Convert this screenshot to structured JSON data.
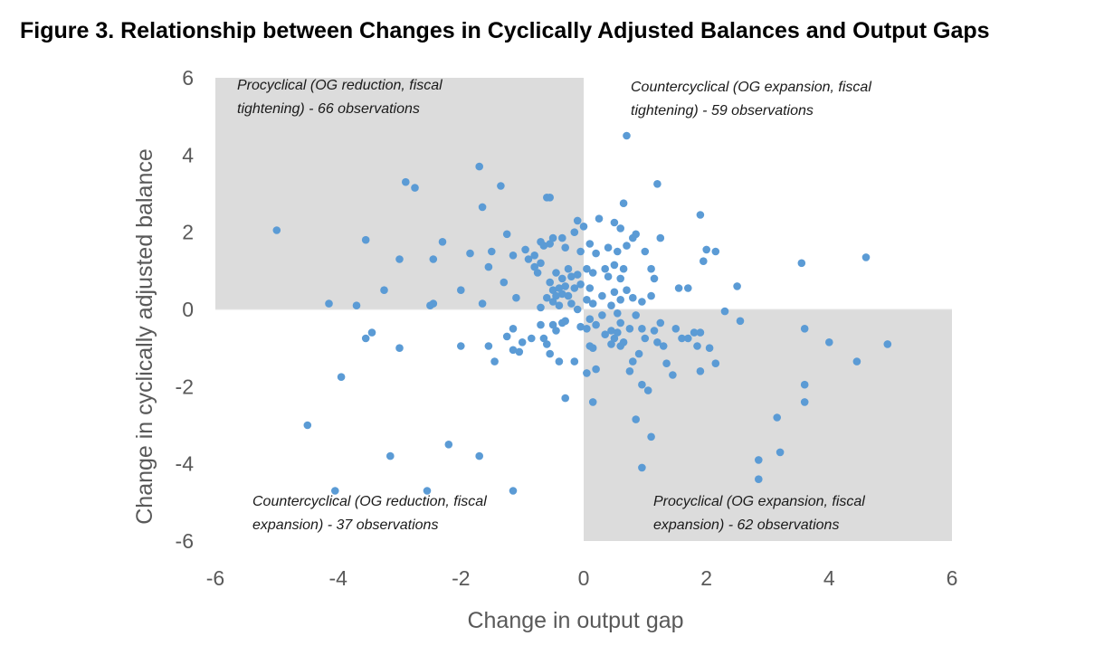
{
  "title": "Figure 3. Relationship between Changes in Cyclically Adjusted Balances and Output Gaps",
  "colors": {
    "point": "#5B9BD5",
    "quadrant": "#DCDCDC",
    "axis": "#595959"
  },
  "chart_data": {
    "type": "scatter",
    "xlabel": "Change in output gap",
    "ylabel": "Change in cyclically adjusted balance",
    "xlim": [
      -6,
      6
    ],
    "ylim": [
      -6,
      6
    ],
    "xticks": [
      "-6",
      "-4",
      "-2",
      "0",
      "2",
      "4",
      "6"
    ],
    "yticks": [
      "6",
      "4",
      "2",
      "0",
      "-2",
      "-4",
      "-6"
    ],
    "grid": false,
    "shaded_quadrants": [
      "top-left",
      "bottom-right"
    ],
    "quadrant_labels": {
      "top_left": [
        "Procyclical (OG reduction, fiscal",
        "tightening) - 66 observations"
      ],
      "top_right": [
        "Countercyclical (OG expansion,  fiscal",
        "tightening) - 59 observations"
      ],
      "bottom_left": [
        "Countercyclical (OG reduction, fiscal",
        "expansion)  - 37 observations"
      ],
      "bottom_right": [
        "Procyclical (OG expansion,  fiscal",
        "expansion) - 62 observations"
      ]
    },
    "points": [
      [
        -5.0,
        2.05
      ],
      [
        -4.15,
        0.15
      ],
      [
        -3.95,
        -1.75
      ],
      [
        -4.5,
        -3.0
      ],
      [
        -4.05,
        -4.7
      ],
      [
        -3.7,
        0.1
      ],
      [
        -3.55,
        1.8
      ],
      [
        -3.55,
        -0.75
      ],
      [
        -3.45,
        -0.6
      ],
      [
        -3.25,
        0.5
      ],
      [
        -3.15,
        -3.8
      ],
      [
        -3.0,
        1.3
      ],
      [
        -3.0,
        -1.0
      ],
      [
        -2.9,
        3.3
      ],
      [
        -2.75,
        3.15
      ],
      [
        -2.55,
        -4.7
      ],
      [
        -2.5,
        0.1
      ],
      [
        -2.45,
        0.15
      ],
      [
        -2.45,
        1.3
      ],
      [
        -2.3,
        1.75
      ],
      [
        -2.2,
        -3.5
      ],
      [
        -2.0,
        0.5
      ],
      [
        -2.0,
        -0.95
      ],
      [
        -1.85,
        1.45
      ],
      [
        -1.7,
        3.7
      ],
      [
        -1.7,
        -3.8
      ],
      [
        -1.65,
        0.15
      ],
      [
        -1.65,
        2.65
      ],
      [
        -1.55,
        1.1
      ],
      [
        -1.55,
        -0.95
      ],
      [
        -1.5,
        1.5
      ],
      [
        -1.45,
        -1.35
      ],
      [
        -1.35,
        3.2
      ],
      [
        -1.3,
        0.7
      ],
      [
        -1.25,
        -0.7
      ],
      [
        -1.25,
        1.95
      ],
      [
        -1.15,
        -0.5
      ],
      [
        -1.15,
        -1.05
      ],
      [
        -1.15,
        1.4
      ],
      [
        -1.15,
        -4.7
      ],
      [
        -1.1,
        0.3
      ],
      [
        -1.05,
        -1.1
      ],
      [
        -1.0,
        -0.85
      ],
      [
        -0.95,
        1.55
      ],
      [
        -0.9,
        1.3
      ],
      [
        -0.85,
        -0.75
      ],
      [
        -0.8,
        1.1
      ],
      [
        -0.8,
        1.4
      ],
      [
        -0.75,
        0.95
      ],
      [
        -0.7,
        1.75
      ],
      [
        -0.7,
        1.2
      ],
      [
        -0.7,
        0.05
      ],
      [
        -0.7,
        -0.4
      ],
      [
        -0.65,
        1.65
      ],
      [
        -0.65,
        -0.75
      ],
      [
        -0.6,
        2.9
      ],
      [
        -0.6,
        0.3
      ],
      [
        -0.6,
        -0.9
      ],
      [
        -0.55,
        2.9
      ],
      [
        -0.55,
        1.7
      ],
      [
        -0.55,
        0.7
      ],
      [
        -0.55,
        -1.15
      ],
      [
        -0.5,
        1.85
      ],
      [
        -0.5,
        0.5
      ],
      [
        -0.5,
        0.2
      ],
      [
        -0.5,
        -0.4
      ],
      [
        -0.45,
        0.95
      ],
      [
        -0.45,
        0.35
      ],
      [
        -0.45,
        -0.55
      ],
      [
        -0.4,
        0.55
      ],
      [
        -0.4,
        0.1
      ],
      [
        -0.4,
        -1.35
      ],
      [
        -0.35,
        1.85
      ],
      [
        -0.35,
        0.8
      ],
      [
        -0.35,
        0.4
      ],
      [
        -0.35,
        -0.35
      ],
      [
        -0.3,
        1.6
      ],
      [
        -0.3,
        0.6
      ],
      [
        -0.3,
        -0.3
      ],
      [
        -0.3,
        -2.3
      ],
      [
        -0.25,
        1.05
      ],
      [
        -0.25,
        0.35
      ],
      [
        -0.2,
        0.85
      ],
      [
        -0.2,
        0.15
      ],
      [
        -0.15,
        2.0
      ],
      [
        -0.15,
        0.55
      ],
      [
        -0.15,
        -1.35
      ],
      [
        -0.1,
        2.3
      ],
      [
        -0.1,
        0.9
      ],
      [
        -0.1,
        0.0
      ],
      [
        -0.05,
        1.5
      ],
      [
        -0.05,
        0.65
      ],
      [
        -0.05,
        -0.45
      ],
      [
        0.0,
        2.15
      ],
      [
        0.05,
        1.05
      ],
      [
        0.05,
        0.25
      ],
      [
        0.05,
        -0.5
      ],
      [
        0.05,
        -1.65
      ],
      [
        0.1,
        1.7
      ],
      [
        0.1,
        0.55
      ],
      [
        0.1,
        -0.25
      ],
      [
        0.1,
        -0.95
      ],
      [
        0.15,
        0.95
      ],
      [
        0.15,
        0.15
      ],
      [
        0.15,
        -1.0
      ],
      [
        0.15,
        -2.4
      ],
      [
        0.2,
        1.45
      ],
      [
        0.2,
        -0.4
      ],
      [
        0.2,
        -1.55
      ],
      [
        0.25,
        2.35
      ],
      [
        0.3,
        0.35
      ],
      [
        0.3,
        -0.15
      ],
      [
        0.35,
        1.05
      ],
      [
        0.35,
        -0.65
      ],
      [
        0.4,
        1.6
      ],
      [
        0.4,
        0.85
      ],
      [
        0.45,
        0.1
      ],
      [
        0.45,
        -0.55
      ],
      [
        0.45,
        -0.9
      ],
      [
        0.5,
        2.25
      ],
      [
        0.5,
        1.15
      ],
      [
        0.5,
        0.45
      ],
      [
        0.5,
        -0.75
      ],
      [
        0.55,
        1.5
      ],
      [
        0.55,
        -0.1
      ],
      [
        0.55,
        -0.6
      ],
      [
        0.6,
        2.1
      ],
      [
        0.6,
        0.8
      ],
      [
        0.6,
        0.25
      ],
      [
        0.6,
        -0.35
      ],
      [
        0.6,
        -0.95
      ],
      [
        0.65,
        2.75
      ],
      [
        0.65,
        1.05
      ],
      [
        0.65,
        -0.85
      ],
      [
        0.7,
        4.5
      ],
      [
        0.7,
        1.65
      ],
      [
        0.7,
        0.5
      ],
      [
        0.75,
        -0.5
      ],
      [
        0.75,
        -1.6
      ],
      [
        0.8,
        1.85
      ],
      [
        0.8,
        0.3
      ],
      [
        0.8,
        -1.35
      ],
      [
        0.85,
        1.95
      ],
      [
        0.85,
        -0.15
      ],
      [
        0.85,
        -2.85
      ],
      [
        0.9,
        -1.15
      ],
      [
        0.95,
        0.2
      ],
      [
        0.95,
        -0.5
      ],
      [
        0.95,
        -1.95
      ],
      [
        0.95,
        -4.1
      ],
      [
        1.0,
        1.5
      ],
      [
        1.0,
        -0.75
      ],
      [
        1.05,
        -2.1
      ],
      [
        1.1,
        1.05
      ],
      [
        1.1,
        0.35
      ],
      [
        1.1,
        -3.3
      ],
      [
        1.15,
        0.8
      ],
      [
        1.15,
        -0.55
      ],
      [
        1.2,
        3.25
      ],
      [
        1.2,
        -0.85
      ],
      [
        1.25,
        1.85
      ],
      [
        1.25,
        -0.35
      ],
      [
        1.3,
        -0.95
      ],
      [
        1.35,
        -1.4
      ],
      [
        1.45,
        -1.7
      ],
      [
        1.5,
        -0.5
      ],
      [
        1.55,
        0.55
      ],
      [
        1.6,
        -0.75
      ],
      [
        1.7,
        0.55
      ],
      [
        1.7,
        -0.75
      ],
      [
        1.8,
        -0.6
      ],
      [
        1.85,
        -0.95
      ],
      [
        1.9,
        2.45
      ],
      [
        1.9,
        -0.6
      ],
      [
        1.9,
        -1.6
      ],
      [
        1.95,
        1.25
      ],
      [
        2.0,
        1.55
      ],
      [
        2.05,
        -1.0
      ],
      [
        2.15,
        1.5
      ],
      [
        2.15,
        -1.4
      ],
      [
        2.3,
        -0.05
      ],
      [
        2.5,
        0.6
      ],
      [
        2.55,
        -0.3
      ],
      [
        2.85,
        -3.9
      ],
      [
        2.85,
        -4.4
      ],
      [
        3.15,
        -2.8
      ],
      [
        3.2,
        -3.7
      ],
      [
        3.55,
        1.2
      ],
      [
        3.6,
        -0.5
      ],
      [
        3.6,
        -1.95
      ],
      [
        3.6,
        -2.4
      ],
      [
        4.0,
        -0.85
      ],
      [
        4.45,
        -1.35
      ],
      [
        4.6,
        1.35
      ],
      [
        4.95,
        -0.9
      ]
    ]
  }
}
